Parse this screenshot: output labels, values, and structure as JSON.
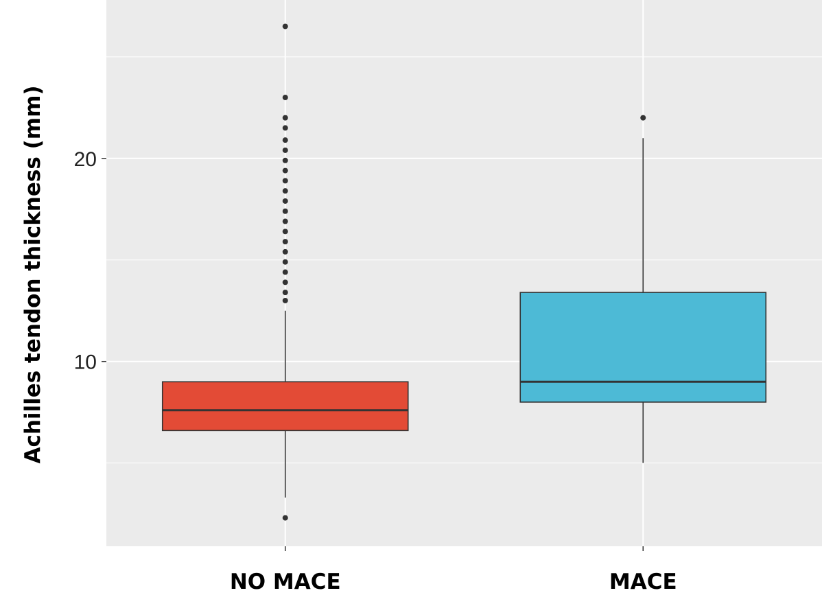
{
  "chart_data": {
    "type": "boxplot",
    "title": "",
    "xlabel": "",
    "ylabel": "Achilles tendon thickness (mm)",
    "ylim": [
      0.9,
      27.8
    ],
    "yticks": [
      10,
      20
    ],
    "minor_yticks": [
      5,
      15,
      25
    ],
    "grid": true,
    "legend": "none",
    "colors": {
      "panel": "#ebebeb",
      "grid": "#ffffff",
      "box_no_mace": "#e34b36",
      "box_mace": "#4dbad6",
      "outline": "#333333"
    },
    "categories": [
      "NO MACE",
      "MACE"
    ],
    "boxes": [
      {
        "category": "NO MACE",
        "q1": 6.6,
        "median": 7.6,
        "q3": 9.0,
        "whisker_low": 3.3,
        "whisker_high": 12.5,
        "outliers": [
          2.3,
          13.0,
          13.4,
          13.9,
          14.4,
          14.9,
          15.4,
          15.9,
          16.4,
          16.9,
          17.4,
          17.9,
          18.4,
          18.9,
          19.4,
          19.9,
          20.4,
          20.9,
          21.5,
          22.0,
          23.0,
          26.5
        ]
      },
      {
        "category": "MACE",
        "q1": 8.0,
        "median": 9.0,
        "q3": 13.4,
        "whisker_low": 5.0,
        "whisker_high": 21.0,
        "outliers": [
          22.0
        ]
      }
    ]
  }
}
